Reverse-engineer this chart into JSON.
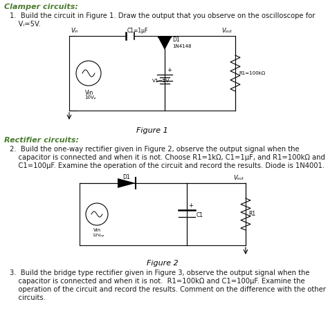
{
  "bg_color": "#ffffff",
  "italic_green": "#4a7c2f",
  "text_color": "#1a1a1a",
  "fig1_caption": "Figure 1",
  "fig2_caption": "Figure 2",
  "q1_line1": "1.  Build the circuit in Figure 1. Draw the output that you observe on the oscilloscope for",
  "q1_line2": "    Vᵢ=5V.",
  "q2_line1": "2.  Build the one-way rectifier given in Figure 2, observe the output signal when the",
  "q2_line2": "    capacitor is connected and when it is not. Choose R1=1kΩ, C1=1μF, and R1=100kΩ and",
  "q2_line3": "    C1=100μF. Examine the operation of the circuit and record the results. Diode is 1N4001.",
  "q3_line1": "3.  Build the bridge type rectifier given in Figure 3, observe the output signal when the",
  "q3_line2": "    capacitor is connected and when it is not.  R1=100kΩ and C1=100μF. Examine the",
  "q3_line3": "    operation of the circuit and record the results. Comment on the difference with the other",
  "q3_line4": "    circuits."
}
